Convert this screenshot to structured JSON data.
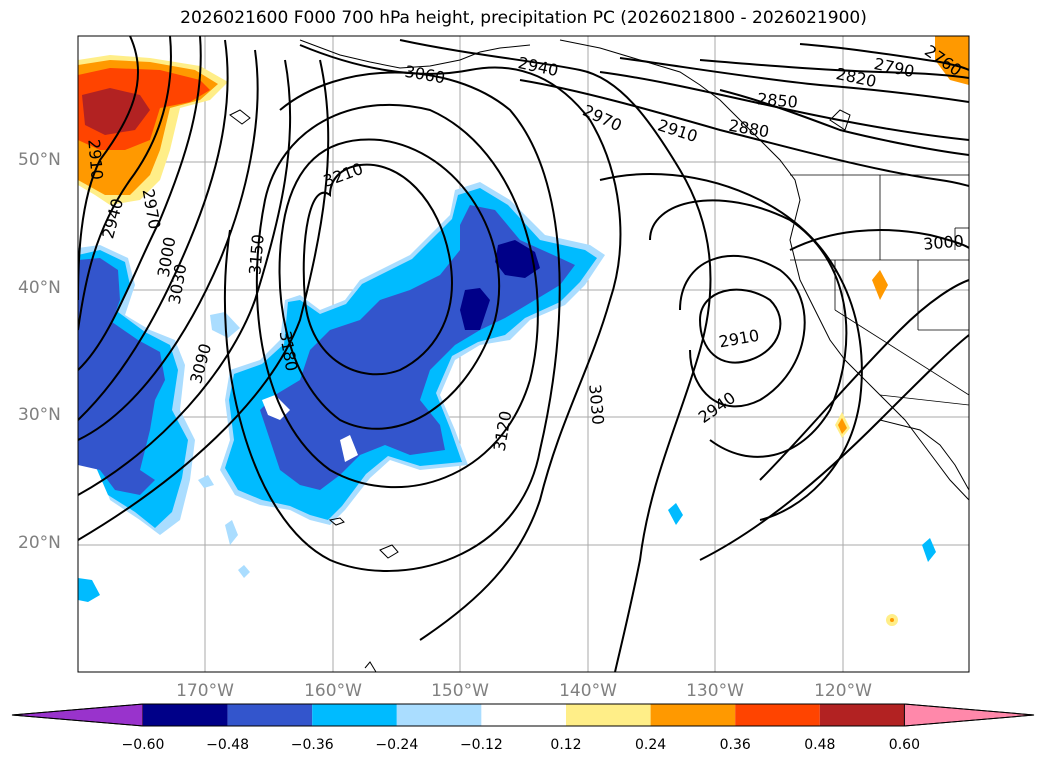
{
  "title": "2026021600 F000 700 hPa height, precipitation PC (2026021800 - 2026021900)",
  "lat_labels": [
    "50°N",
    "40°N",
    "30°N",
    "20°N"
  ],
  "lon_labels": [
    "170°W",
    "160°W",
    "150°W",
    "140°W",
    "130°W",
    "120°W"
  ],
  "contour_labels": [
    "3060",
    "2940",
    "2790",
    "2760",
    "2820",
    "2850",
    "2970",
    "2910",
    "2880",
    "2910",
    "2940",
    "2970",
    "3000",
    "3030",
    "3000",
    "3210",
    "3150",
    "3180",
    "3090",
    "2910",
    "2940",
    "3030",
    "3120"
  ],
  "colorbar": {
    "ticks": [
      "−0.60",
      "−0.48",
      "−0.36",
      "−0.24",
      "−0.12",
      "0.12",
      "0.24",
      "0.36",
      "0.48",
      "0.60"
    ],
    "colors": [
      "#9933cc",
      "#000088",
      "#3355cc",
      "#00bbff",
      "#aaddff",
      "#ffffff",
      "#ffee88",
      "#ff9900",
      "#ff4400",
      "#b22222",
      "#ff88aa"
    ]
  }
}
